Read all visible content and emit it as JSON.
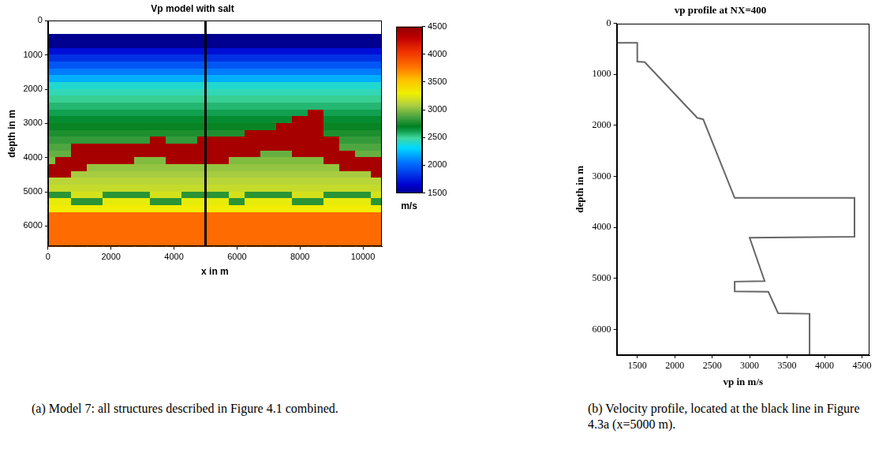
{
  "chart_data": [
    {
      "type": "heatmap",
      "title": "Vp model with salt",
      "x_label": "x in m",
      "y_label": "depth in m",
      "caption": "(a) Model 7: all structures described in Figure 4.1 combined.",
      "x": [
        0,
        500,
        1000,
        1500,
        2000,
        2500,
        3000,
        3500,
        4000,
        4500,
        5000,
        5500,
        6000,
        6500,
        7000,
        7500,
        8000,
        8500,
        9000,
        9500,
        10000,
        10500
      ],
      "y": [
        100,
        300,
        500,
        700,
        900,
        1100,
        1300,
        1500,
        1700,
        1900,
        2100,
        2300,
        2500,
        2700,
        2900,
        3100,
        3300,
        3500,
        3700,
        3900,
        4100,
        4300,
        4500,
        4700,
        4900,
        5100,
        5300,
        5500,
        5700,
        5900,
        6100,
        6300,
        6500
      ],
      "cells": [
        [
          null,
          null,
          null,
          null,
          null,
          null,
          null,
          null,
          null,
          null,
          null,
          null,
          null,
          null,
          null,
          null,
          null,
          null,
          null,
          null,
          null,
          null
        ],
        [
          null,
          null,
          null,
          null,
          null,
          null,
          null,
          null,
          null,
          null,
          null,
          null,
          null,
          null,
          null,
          null,
          null,
          null,
          null,
          null,
          null,
          null
        ],
        [
          1500,
          1500,
          1500,
          1500,
          1500,
          1500,
          1500,
          1500,
          1500,
          1500,
          1500,
          1500,
          1500,
          1500,
          1500,
          1500,
          1500,
          1500,
          1500,
          1500,
          1500,
          1500
        ],
        [
          1500,
          1500,
          1500,
          1500,
          1500,
          1500,
          1500,
          1500,
          1500,
          1500,
          1500,
          1500,
          1500,
          1500,
          1500,
          1500,
          1500,
          1500,
          1500,
          1500,
          1500,
          1500
        ],
        [
          1700,
          1700,
          1700,
          1700,
          1700,
          1700,
          1700,
          1700,
          1700,
          1700,
          1700,
          1700,
          1700,
          1700,
          1700,
          1700,
          1700,
          1700,
          1700,
          1700,
          1700,
          1700
        ],
        [
          1820,
          1820,
          1820,
          1820,
          1820,
          1820,
          1820,
          1820,
          1820,
          1820,
          1820,
          1820,
          1820,
          1820,
          1820,
          1820,
          1820,
          1820,
          1820,
          1820,
          1820,
          1820
        ],
        [
          1950,
          1950,
          1950,
          1950,
          1950,
          1950,
          1950,
          1950,
          1950,
          1950,
          1950,
          1950,
          1950,
          1950,
          1950,
          1950,
          1950,
          1950,
          1950,
          1950,
          1950,
          1950
        ],
        [
          2070,
          2070,
          2070,
          2070,
          2070,
          2070,
          2070,
          2070,
          2070,
          2070,
          2070,
          2070,
          2070,
          2070,
          2070,
          2070,
          2070,
          2070,
          2070,
          2070,
          2070,
          2070
        ],
        [
          2200,
          2200,
          2200,
          2200,
          2200,
          2200,
          2200,
          2200,
          2200,
          2200,
          2200,
          2200,
          2200,
          2200,
          2200,
          2200,
          2200,
          2200,
          2200,
          2200,
          2200,
          2200
        ],
        [
          2400,
          2400,
          2400,
          2400,
          2400,
          2400,
          2400,
          2400,
          2400,
          2400,
          2400,
          2400,
          2400,
          2400,
          2400,
          2400,
          2400,
          2400,
          2400,
          2400,
          2400,
          2400
        ],
        [
          2450,
          2450,
          2450,
          2450,
          2450,
          2450,
          2450,
          2450,
          2450,
          2450,
          2450,
          2450,
          2450,
          2450,
          2450,
          2450,
          2450,
          2450,
          2450,
          2450,
          2450,
          2450
        ],
        [
          2510,
          2510,
          2510,
          2510,
          2510,
          2510,
          2510,
          2510,
          2510,
          2510,
          2510,
          2510,
          2510,
          2510,
          2510,
          2510,
          2510,
          2510,
          2510,
          2510,
          2510,
          2510
        ],
        [
          2560,
          2560,
          2560,
          2560,
          2560,
          2560,
          2560,
          2560,
          2560,
          2560,
          2560,
          2560,
          2560,
          2560,
          2560,
          2560,
          2560,
          2560,
          2560,
          2560,
          2560,
          2560
        ],
        [
          2610,
          2610,
          2610,
          2610,
          2610,
          2610,
          2610,
          2610,
          2610,
          2610,
          2610,
          2610,
          2610,
          2610,
          2610,
          2610,
          2610,
          4400,
          2610,
          2610,
          2610,
          2610
        ],
        [
          2670,
          2670,
          2670,
          2670,
          2670,
          2670,
          2670,
          2670,
          2670,
          2670,
          2670,
          2670,
          2670,
          2670,
          2670,
          2670,
          4400,
          4400,
          2670,
          2670,
          2670,
          2670
        ],
        [
          2720,
          2720,
          2720,
          2720,
          2720,
          2720,
          2720,
          2720,
          2720,
          2720,
          2720,
          2720,
          2720,
          2720,
          2720,
          4400,
          4400,
          4400,
          2720,
          2720,
          2720,
          2720
        ],
        [
          2770,
          2770,
          2770,
          2770,
          2770,
          2770,
          2770,
          2770,
          2770,
          2770,
          2770,
          2770,
          2770,
          4400,
          4400,
          4400,
          4400,
          4400,
          2770,
          2770,
          2770,
          2770
        ],
        [
          2820,
          2820,
          2820,
          2820,
          2820,
          2820,
          2820,
          4400,
          2820,
          2820,
          4400,
          4400,
          4400,
          4400,
          4400,
          4400,
          4400,
          4400,
          4400,
          2820,
          2820,
          2820
        ],
        [
          2880,
          2880,
          4400,
          4400,
          4400,
          4400,
          4400,
          4400,
          4400,
          4400,
          4400,
          4400,
          4400,
          4400,
          4400,
          4400,
          4400,
          4400,
          4400,
          2880,
          2880,
          2880
        ],
        [
          2930,
          2930,
          4400,
          4400,
          4400,
          4400,
          4400,
          4400,
          4400,
          4400,
          4400,
          4400,
          4400,
          4400,
          2930,
          2930,
          4400,
          4400,
          4400,
          4400,
          2930,
          2930
        ],
        [
          2990,
          4400,
          4400,
          4400,
          4400,
          4400,
          2990,
          2990,
          4400,
          4400,
          4400,
          4400,
          2990,
          2990,
          2990,
          2990,
          2990,
          2990,
          4400,
          4400,
          4400,
          4400
        ],
        [
          4400,
          4400,
          4400,
          3030,
          3030,
          3030,
          3030,
          3030,
          3030,
          3030,
          3030,
          3030,
          3030,
          3030,
          3030,
          3030,
          3030,
          3030,
          3030,
          4400,
          4400,
          4400
        ],
        [
          4400,
          4400,
          3070,
          3070,
          3070,
          3070,
          3070,
          3070,
          3070,
          3070,
          3070,
          3070,
          3070,
          3070,
          3070,
          3070,
          3070,
          3070,
          3070,
          3070,
          3070,
          4400
        ],
        [
          3120,
          3120,
          3120,
          3120,
          3120,
          3120,
          3120,
          3120,
          3120,
          3120,
          3120,
          3120,
          3120,
          3120,
          3120,
          3120,
          3120,
          3120,
          3120,
          3120,
          3120,
          3120
        ],
        [
          3160,
          3160,
          3160,
          3160,
          3160,
          3160,
          3160,
          3160,
          3160,
          3160,
          3160,
          3160,
          3160,
          3160,
          3160,
          3160,
          3160,
          3160,
          3160,
          3160,
          3160,
          3160
        ],
        [
          2800,
          2800,
          3210,
          3210,
          2800,
          2800,
          2800,
          3210,
          3210,
          2800,
          2800,
          2800,
          3210,
          2800,
          2800,
          2800,
          3210,
          3210,
          2800,
          2800,
          2800,
          3210
        ],
        [
          3270,
          3270,
          2800,
          2800,
          3270,
          3270,
          3270,
          2800,
          2800,
          3270,
          3270,
          3270,
          2800,
          3270,
          3270,
          3270,
          2800,
          2800,
          3270,
          3270,
          3270,
          2800
        ],
        [
          3320,
          3320,
          3320,
          3320,
          3320,
          3320,
          3320,
          3320,
          3320,
          3320,
          3320,
          3320,
          3320,
          3320,
          3320,
          3320,
          3320,
          3320,
          3320,
          3320,
          3320,
          3320
        ],
        [
          3800,
          3800,
          3800,
          3800,
          3800,
          3800,
          3800,
          3800,
          3800,
          3800,
          3800,
          3800,
          3800,
          3800,
          3800,
          3800,
          3800,
          3800,
          3800,
          3800,
          3800,
          3800
        ],
        [
          3800,
          3800,
          3800,
          3800,
          3800,
          3800,
          3800,
          3800,
          3800,
          3800,
          3800,
          3800,
          3800,
          3800,
          3800,
          3800,
          3800,
          3800,
          3800,
          3800,
          3800,
          3800
        ],
        [
          3800,
          3800,
          3800,
          3800,
          3800,
          3800,
          3800,
          3800,
          3800,
          3800,
          3800,
          3800,
          3800,
          3800,
          3800,
          3800,
          3800,
          3800,
          3800,
          3800,
          3800,
          3800
        ],
        [
          3800,
          3800,
          3800,
          3800,
          3800,
          3800,
          3800,
          3800,
          3800,
          3800,
          3800,
          3800,
          3800,
          3800,
          3800,
          3800,
          3800,
          3800,
          3800,
          3800,
          3800,
          3800
        ],
        [
          3800,
          3800,
          3800,
          3800,
          3800,
          3800,
          3800,
          3800,
          3800,
          3800,
          3800,
          3800,
          3800,
          3800,
          3800,
          3800,
          3800,
          3800,
          3800,
          3800,
          3800,
          3800
        ]
      ],
      "xlim": [
        0,
        10600
      ],
      "xticks": [
        0,
        2000,
        4000,
        6000,
        8000,
        10000
      ],
      "ylim": [
        6600,
        0
      ],
      "yticks": [
        0,
        1000,
        2000,
        3000,
        4000,
        5000,
        6000
      ],
      "grid": false,
      "colorbar": {
        "label": "m/s",
        "range": [
          1500,
          4500
        ],
        "ticks": [
          1500,
          2000,
          2500,
          3000,
          3500,
          4000,
          4500
        ]
      },
      "annotations": [
        {
          "x": 5000,
          "color": "#000000"
        }
      ]
    },
    {
      "type": "line",
      "title": "vp profile at NX=400",
      "x_label": "vp in m/s",
      "y_label": "depth in m",
      "caption": "(b) Velocity profile, located at the black line in Figure 4.3a (x=5000 m).",
      "x": [
        1225,
        1500,
        1500,
        1600,
        2300,
        2380,
        2800,
        4400,
        4400,
        3000,
        3200,
        2800,
        2800,
        3250,
        3380,
        3800,
        3800
      ],
      "values": [
        380,
        380,
        750,
        760,
        1850,
        1880,
        3420,
        3420,
        4180,
        4200,
        5050,
        5060,
        5250,
        5260,
        5680,
        5690,
        6500
      ],
      "color": "#666666",
      "xlim": [
        1225,
        4600
      ],
      "xticks": [
        1500,
        2000,
        2500,
        3000,
        3500,
        4000,
        4500
      ],
      "ylim": [
        6500,
        0
      ],
      "yticks": [
        0,
        1000,
        2000,
        3000,
        4000,
        5000,
        6000
      ],
      "grid": false
    }
  ]
}
